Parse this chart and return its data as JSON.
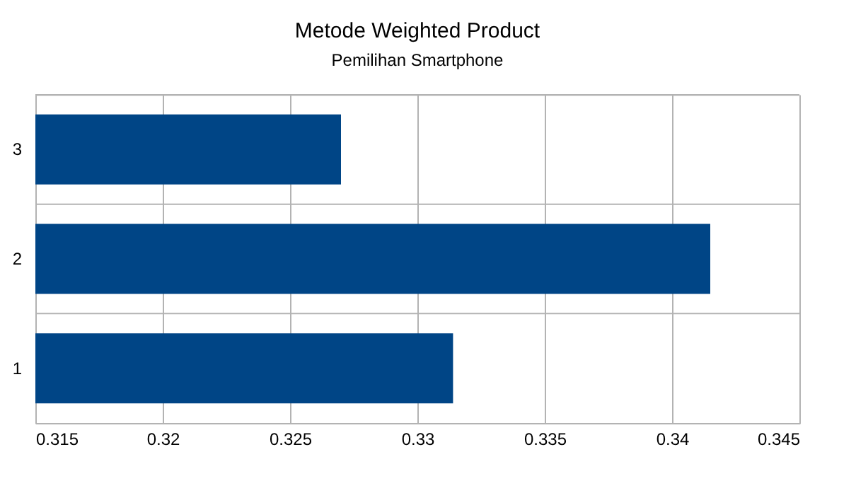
{
  "chart_data": {
    "type": "bar",
    "orientation": "horizontal",
    "title": "Metode Weighted Product",
    "subtitle": "Pemilihan Smartphone",
    "categories": [
      "3",
      "2",
      "1"
    ],
    "values": [
      0.327,
      0.3415,
      0.3314
    ],
    "color": "#004586",
    "xlim": [
      0.315,
      0.345
    ],
    "xticks": [
      0.315,
      0.32,
      0.325,
      0.33,
      0.335,
      0.34,
      0.345
    ],
    "grid": true
  }
}
